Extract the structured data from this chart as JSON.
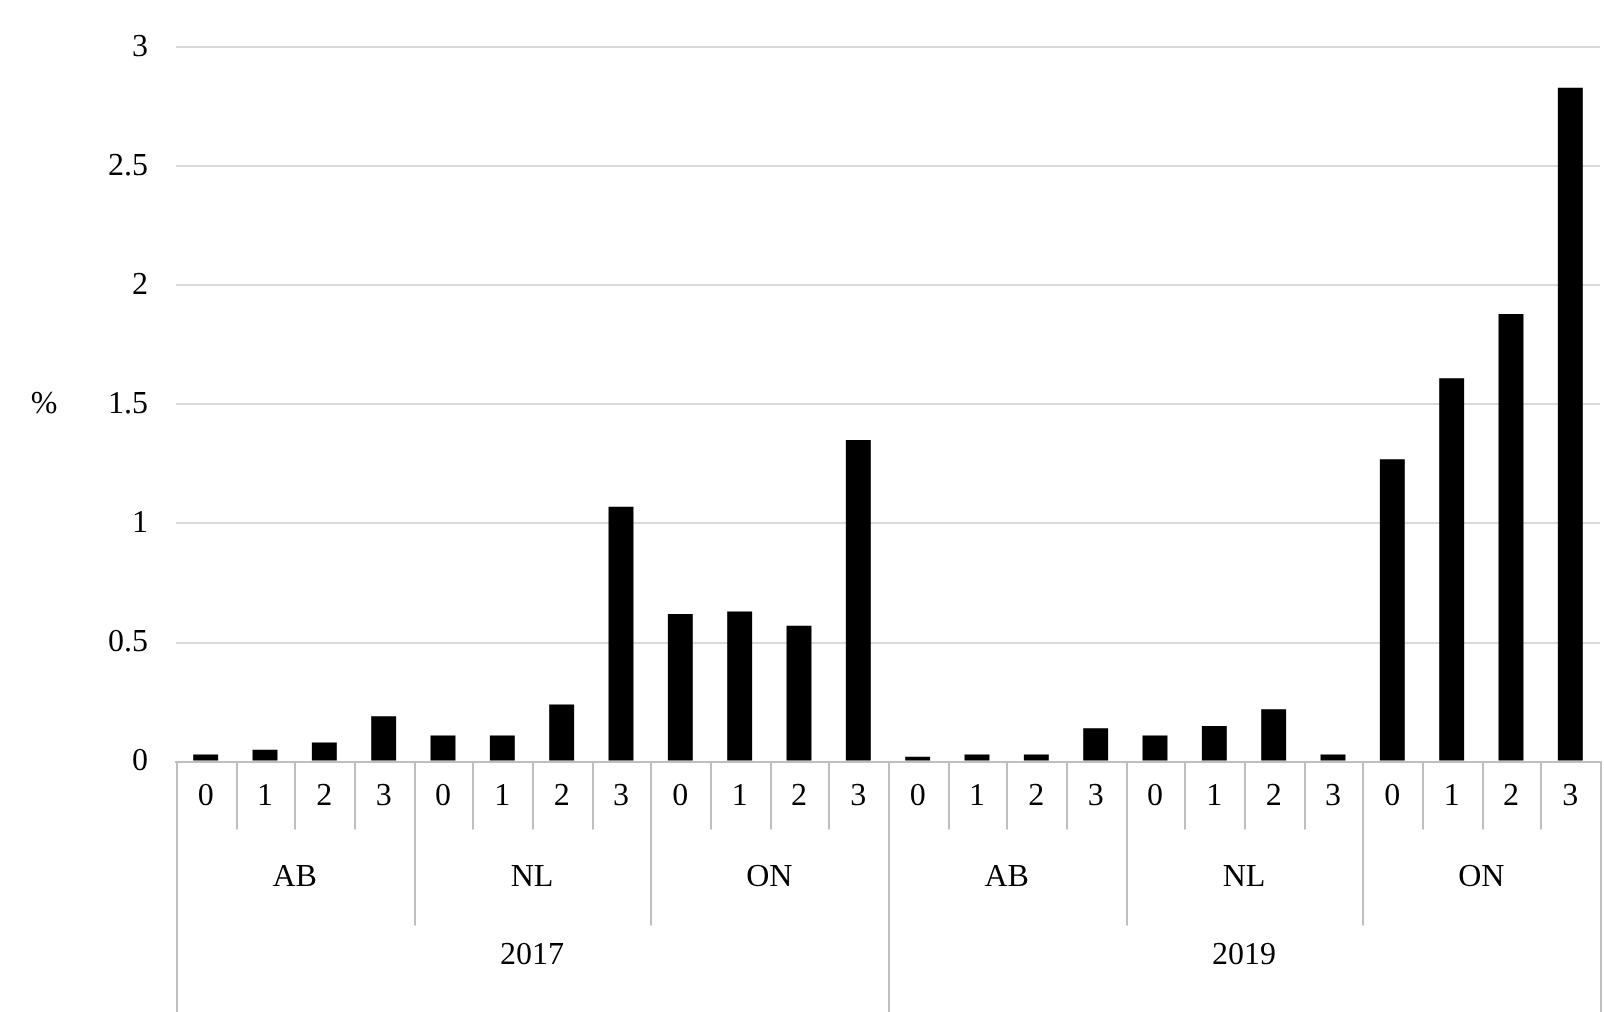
{
  "chart_data": {
    "type": "bar",
    "ylabel": "%",
    "categories": [
      "0",
      "1",
      "2",
      "3",
      "0",
      "1",
      "2",
      "3",
      "0",
      "1",
      "2",
      "3",
      "0",
      "1",
      "2",
      "3",
      "0",
      "1",
      "2",
      "3",
      "0",
      "1",
      "2",
      "3"
    ],
    "values": [
      0.03,
      0.05,
      0.08,
      0.19,
      0.11,
      0.11,
      0.24,
      1.07,
      0.62,
      0.63,
      0.57,
      1.35,
      0.02,
      0.03,
      0.03,
      0.14,
      0.11,
      0.15,
      0.22,
      0.03,
      1.27,
      1.61,
      1.88,
      2.83
    ],
    "color": "#000000",
    "ylim": [
      0,
      3
    ],
    "yticks": [
      0,
      0.5,
      1,
      1.5,
      2,
      2.5,
      3
    ],
    "grid": "y",
    "legend": false,
    "annotations": [
      "AB",
      "NL",
      "ON",
      "AB",
      "NL",
      "ON",
      "2017",
      "2019"
    ]
  }
}
